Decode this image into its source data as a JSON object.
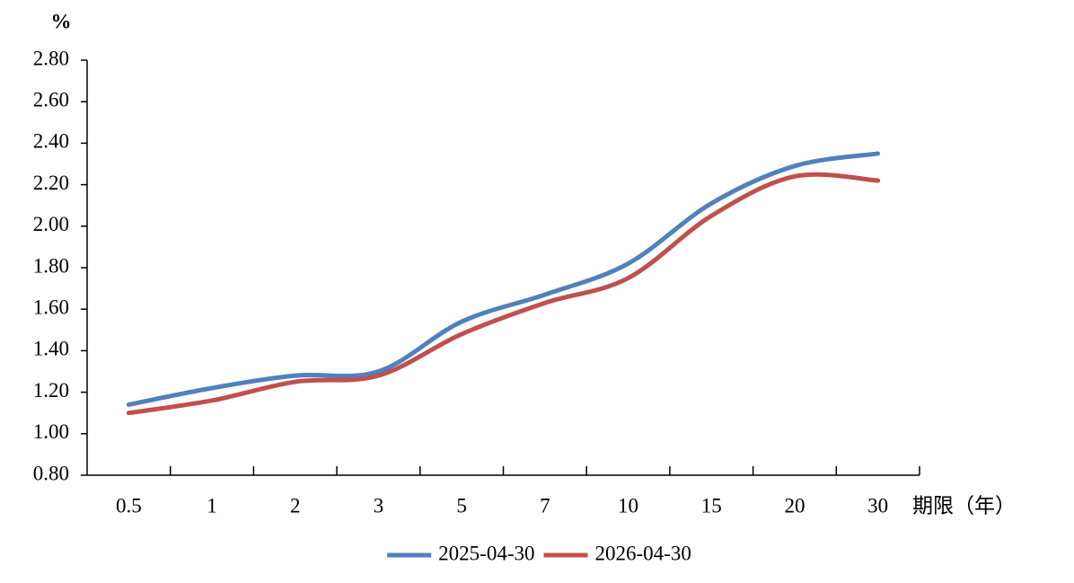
{
  "chart_data": {
    "type": "line",
    "y_unit": "%",
    "x_label": "期限（年）",
    "categories": [
      "0.5",
      "1",
      "2",
      "3",
      "5",
      "7",
      "10",
      "15",
      "20",
      "30"
    ],
    "series": [
      {
        "name": "2025-04-30",
        "color": "#4f81bd",
        "values": [
          1.14,
          1.22,
          1.28,
          1.3,
          1.54,
          1.67,
          1.82,
          2.11,
          2.29,
          2.35
        ]
      },
      {
        "name": "2026-04-30",
        "color": "#c0504d",
        "values": [
          1.1,
          1.16,
          1.25,
          1.28,
          1.48,
          1.63,
          1.75,
          2.05,
          2.24,
          2.22
        ]
      }
    ],
    "ylim": [
      0.8,
      2.8
    ],
    "yticks": [
      {
        "value": 0.8,
        "label": "0.80"
      },
      {
        "value": 1.0,
        "label": "1.00"
      },
      {
        "value": 1.2,
        "label": "1.20"
      },
      {
        "value": 1.4,
        "label": "1.40"
      },
      {
        "value": 1.6,
        "label": "1.60"
      },
      {
        "value": 1.8,
        "label": "1.80"
      },
      {
        "value": 2.0,
        "label": "2.00"
      },
      {
        "value": 2.2,
        "label": "2.20"
      },
      {
        "value": 2.4,
        "label": "2.40"
      },
      {
        "value": 2.6,
        "label": "2.60"
      },
      {
        "value": 2.8,
        "label": "2.80"
      }
    ],
    "smooth": true,
    "legend": "bottom"
  }
}
